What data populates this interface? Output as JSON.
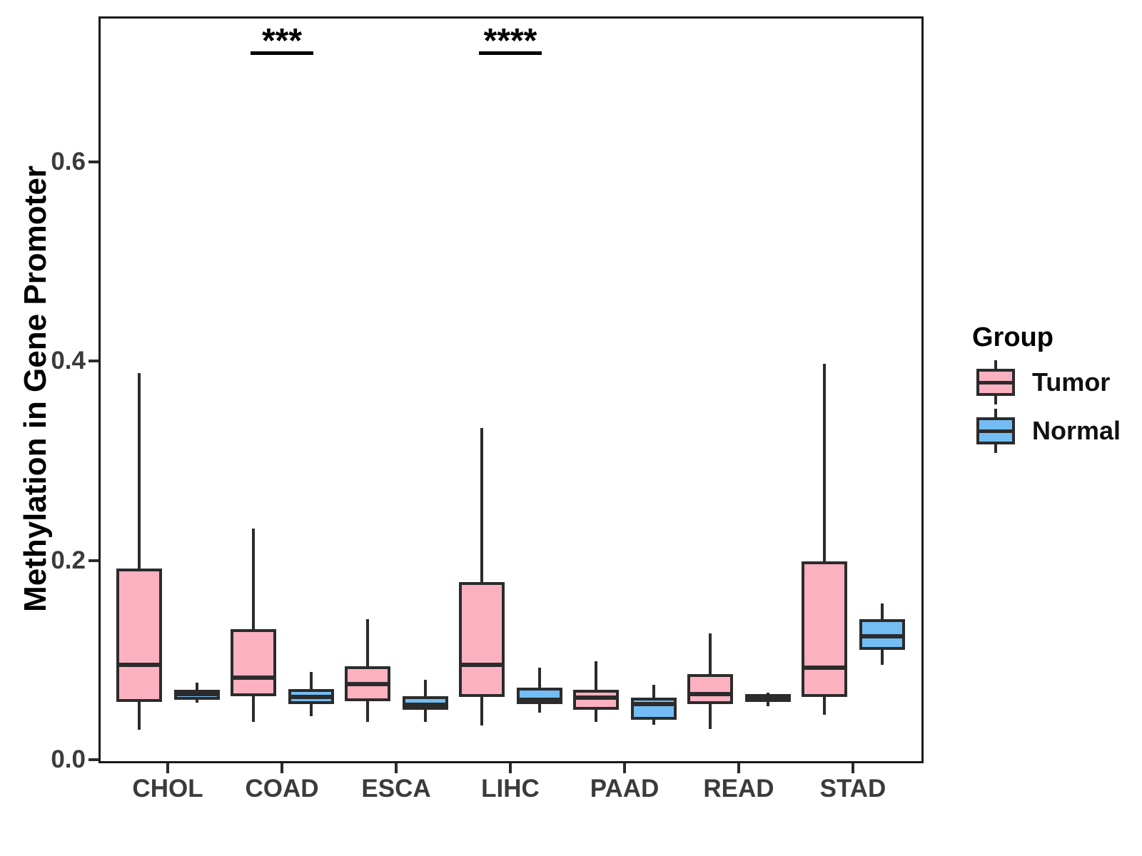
{
  "figure": {
    "ylabel": "Methylation in Gene Promoter"
  },
  "legend": {
    "title": "Group",
    "items": [
      {
        "label": "Tumor",
        "color": "#FCB1C1"
      },
      {
        "label": "Normal",
        "color": "#73BDF4"
      }
    ]
  },
  "chart_data": {
    "type": "boxplot",
    "title": "",
    "xlabel": "",
    "ylabel": "Methylation in Gene Promoter",
    "categories": [
      "CHOL",
      "COAD",
      "ESCA",
      "LIHC",
      "PAAD",
      "READ",
      "STAD"
    ],
    "groups": [
      "Tumor",
      "Normal"
    ],
    "colors": {
      "Tumor": "#FCB1C1",
      "Normal": "#73BDF4",
      "line": "#2b2b2b"
    },
    "ylim": [
      0.0,
      0.745
    ],
    "yticks": [
      {
        "value": 0.0,
        "label": "0.0"
      },
      {
        "value": 0.2,
        "label": "0.2"
      },
      {
        "value": 0.4,
        "label": "0.4"
      },
      {
        "value": 0.6,
        "label": "0.6"
      }
    ],
    "grid": false,
    "legend_position": "right",
    "series": [
      {
        "name": "Tumor",
        "boxes": [
          {
            "category": "CHOL",
            "whisker_low": 0.03,
            "q1": 0.058,
            "median": 0.095,
            "q3": 0.192,
            "whisker_high": 0.388
          },
          {
            "category": "COAD",
            "whisker_low": 0.038,
            "q1": 0.064,
            "median": 0.082,
            "q3": 0.131,
            "whisker_high": 0.232
          },
          {
            "category": "ESCA",
            "whisker_low": 0.038,
            "q1": 0.059,
            "median": 0.076,
            "q3": 0.094,
            "whisker_high": 0.141
          },
          {
            "category": "LIHC",
            "whisker_low": 0.034,
            "q1": 0.063,
            "median": 0.095,
            "q3": 0.178,
            "whisker_high": 0.333
          },
          {
            "category": "PAAD",
            "whisker_low": 0.038,
            "q1": 0.05,
            "median": 0.062,
            "q3": 0.07,
            "whisker_high": 0.099
          },
          {
            "category": "READ",
            "whisker_low": 0.031,
            "q1": 0.056,
            "median": 0.066,
            "q3": 0.086,
            "whisker_high": 0.127
          },
          {
            "category": "STAD",
            "whisker_low": 0.045,
            "q1": 0.063,
            "median": 0.092,
            "q3": 0.199,
            "whisker_high": 0.397
          }
        ]
      },
      {
        "name": "Normal",
        "boxes": [
          {
            "category": "CHOL",
            "whisker_low": 0.057,
            "q1": 0.06,
            "median": 0.066,
            "q3": 0.07,
            "whisker_high": 0.077
          },
          {
            "category": "COAD",
            "whisker_low": 0.044,
            "q1": 0.056,
            "median": 0.063,
            "q3": 0.071,
            "whisker_high": 0.088
          },
          {
            "category": "ESCA",
            "whisker_low": 0.038,
            "q1": 0.05,
            "median": 0.055,
            "q3": 0.064,
            "whisker_high": 0.08
          },
          {
            "category": "LIHC",
            "whisker_low": 0.047,
            "q1": 0.056,
            "median": 0.06,
            "q3": 0.072,
            "whisker_high": 0.092
          },
          {
            "category": "PAAD",
            "whisker_low": 0.035,
            "q1": 0.04,
            "median": 0.056,
            "q3": 0.062,
            "whisker_high": 0.075
          },
          {
            "category": "READ",
            "whisker_low": 0.054,
            "q1": 0.058,
            "median": 0.062,
            "q3": 0.066,
            "whisker_high": 0.067
          },
          {
            "category": "STAD",
            "whisker_low": 0.095,
            "q1": 0.11,
            "median": 0.124,
            "q3": 0.141,
            "whisker_high": 0.157
          }
        ]
      }
    ],
    "significance": [
      {
        "category": "COAD",
        "label": "***"
      },
      {
        "category": "LIHC",
        "label": "****"
      }
    ]
  }
}
